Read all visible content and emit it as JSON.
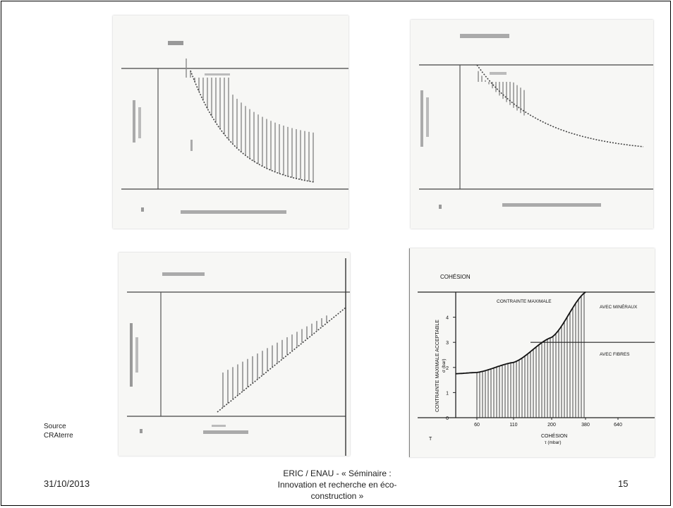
{
  "slide": {
    "source_lines": [
      "Source",
      "CRAterre"
    ],
    "date": "31/10/2013",
    "footer_lines": [
      "ERIC / ENAU  - « Séminaire :",
      "Innovation et recherche en éco-",
      "construction »"
    ],
    "page_number": "15"
  },
  "chart_data": [
    {
      "type": "area",
      "x_ticks": [],
      "y_ticks": []
    },
    {
      "type": "area",
      "x_ticks": [],
      "y_ticks": []
    },
    {
      "type": "area",
      "x_ticks": [],
      "y_ticks": []
    },
    {
      "type": "area",
      "title": "COHÉSION",
      "xlabel": "COHÉSION",
      "xlabel_sub": "τ (mbar)",
      "ylabel": "CONTRAINTE MAXIMALE ACCEPTABLE",
      "ylabel_sub": "σ (bar)",
      "x_ticks": [
        "60",
        "110",
        "200",
        "380",
        "640"
      ],
      "y_ticks": [
        "0",
        "1",
        "2",
        "3",
        "4"
      ],
      "panel_marker": "T",
      "annotations": [
        "CONTRAINTE MAXIMALE",
        "AVEC MINÉRAUX",
        "AVEC FIBRES"
      ],
      "reference_lines": [
        {
          "label": "AVEC MINÉRAUX",
          "y": 5
        },
        {
          "label": "AVEC FIBRES",
          "y": 3
        }
      ],
      "curve": {
        "name": "CONTRAINTE MAXIMALE",
        "x": [
          "60",
          "110",
          "200",
          "380"
        ],
        "y": [
          1.8,
          2.2,
          3.2,
          5.0
        ]
      },
      "hatched_range": {
        "x": [
          "60",
          "380"
        ]
      },
      "ylim": [
        0,
        5
      ],
      "grid": false
    }
  ]
}
